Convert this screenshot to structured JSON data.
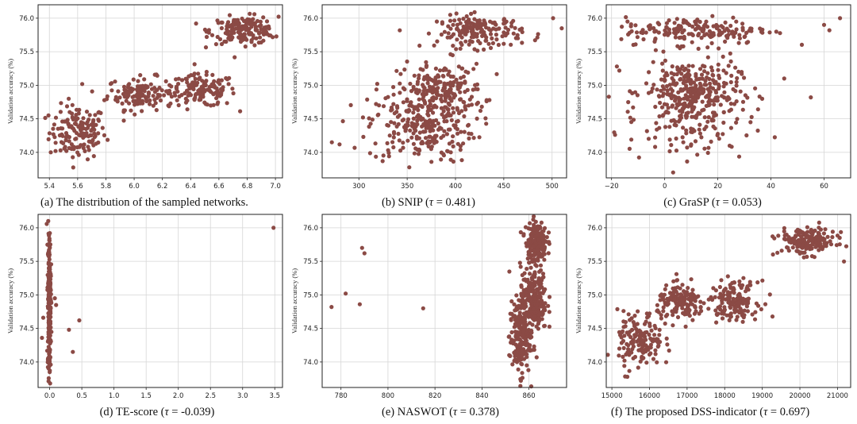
{
  "chart_data": [
    {
      "type": "scatter",
      "caption": "(a) The distribution of the sampled networks.",
      "ylabel": "Validation accuracy (%)",
      "xlabel": "",
      "xlim": [
        5.32,
        7.05
      ],
      "ylim": [
        73.62,
        76.2
      ],
      "xticks": [
        5.4,
        5.6,
        5.8,
        6.0,
        6.2,
        6.4,
        6.6,
        6.8,
        7.0
      ],
      "xtick_labels": [
        "5.4",
        "5.6",
        "5.8",
        "6.0",
        "6.2",
        "6.4",
        "6.6",
        "6.8",
        "7.0"
      ],
      "yticks": [
        74.0,
        74.5,
        75.0,
        75.5,
        76.0
      ],
      "ytick_labels": [
        "74.0",
        "74.5",
        "75.0",
        "75.5",
        "76.0"
      ],
      "grid": true,
      "marker_color": "#8b4a45",
      "clusters": [
        {
          "cx": 5.6,
          "cy": 74.3,
          "sx": 0.1,
          "sy": 0.2,
          "n": 150
        },
        {
          "cx": 6.05,
          "cy": 74.88,
          "sx": 0.12,
          "sy": 0.12,
          "n": 140
        },
        {
          "cx": 6.48,
          "cy": 74.92,
          "sx": 0.12,
          "sy": 0.12,
          "n": 140
        },
        {
          "cx": 6.78,
          "cy": 75.82,
          "sx": 0.12,
          "sy": 0.1,
          "n": 170
        }
      ]
    },
    {
      "type": "scatter",
      "caption": "(b) SNIP (τ = 0.481)",
      "caption_parts": {
        "name": "(b) SNIP (",
        "tau": "τ",
        "rest": " = 0.481)"
      },
      "ylabel": "Validation accuracy (%)",
      "xlim": [
        262,
        515
      ],
      "ylim": [
        73.62,
        76.2
      ],
      "xticks": [
        300,
        350,
        400,
        450,
        500
      ],
      "xtick_labels": [
        "300",
        "350",
        "400",
        "450",
        "500"
      ],
      "yticks": [
        74.0,
        74.5,
        75.0,
        75.5,
        76.0
      ],
      "ytick_labels": [
        "74.0",
        "74.5",
        "75.0",
        "75.5",
        "76.0"
      ],
      "grid": true,
      "marker_color": "#8b4a45",
      "clusters": [
        {
          "cx": 365,
          "cy": 74.4,
          "sx": 28,
          "sy": 0.28,
          "n": 260
        },
        {
          "cx": 385,
          "cy": 74.95,
          "sx": 22,
          "sy": 0.18,
          "n": 180
        },
        {
          "cx": 425,
          "cy": 75.8,
          "sx": 22,
          "sy": 0.12,
          "n": 170
        }
      ],
      "outliers": [
        [
          272,
          74.15
        ],
        [
          280,
          74.12
        ],
        [
          501,
          76.0
        ],
        [
          510,
          75.85
        ]
      ]
    },
    {
      "type": "scatter",
      "caption": "(c) GraSP (τ = 0.053)",
      "caption_parts": {
        "name": "(c) GraSP (",
        "tau": "τ",
        "rest": " = 0.053)"
      },
      "ylabel": "Validation accuracy (%)",
      "xlim": [
        -22,
        70
      ],
      "ylim": [
        73.62,
        76.2
      ],
      "xticks": [
        -20,
        0,
        20,
        40,
        60
      ],
      "xtick_labels": [
        "−20",
        "0",
        "20",
        "40",
        "60"
      ],
      "yticks": [
        74.0,
        74.5,
        75.0,
        75.5,
        76.0
      ],
      "ytick_labels": [
        "74.0",
        "74.5",
        "75.0",
        "75.5",
        "76.0"
      ],
      "grid": true,
      "marker_color": "#8b4a45",
      "clusters": [
        {
          "cx": 10,
          "cy": 74.9,
          "sx": 9,
          "sy": 0.25,
          "n": 320
        },
        {
          "cx": 10,
          "cy": 74.35,
          "sx": 12,
          "sy": 0.3,
          "n": 90
        },
        {
          "cx": 12,
          "cy": 75.82,
          "sx": 14,
          "sy": 0.1,
          "n": 170
        }
      ],
      "outliers": [
        [
          -18,
          75.28
        ],
        [
          -14,
          75.95
        ],
        [
          45,
          75.1
        ],
        [
          55,
          74.82
        ],
        [
          60,
          75.9
        ],
        [
          66,
          76.0
        ],
        [
          62,
          75.82
        ]
      ]
    },
    {
      "type": "scatter",
      "caption": "(d) TE-score (τ = -0.039)",
      "caption_parts": {
        "name": "(d) TE-score (",
        "tau": "τ",
        "rest": " = -0.039)"
      },
      "ylabel": "Validation accuracy (%)",
      "xlim": [
        -0.18,
        3.62
      ],
      "ylim": [
        73.62,
        76.2
      ],
      "xticks": [
        0.0,
        0.5,
        1.0,
        1.5,
        2.0,
        2.5,
        3.0,
        3.5
      ],
      "xtick_labels": [
        "0.0",
        "0.5",
        "1.0",
        "1.5",
        "2.0",
        "2.5",
        "3.0",
        "3.5"
      ],
      "yticks": [
        74.0,
        74.5,
        75.0,
        75.5,
        76.0
      ],
      "ytick_labels": [
        "74.0",
        "74.5",
        "75.0",
        "75.5",
        "76.0"
      ],
      "grid": true,
      "marker_color": "#8b4a45",
      "clusters": [
        {
          "cx": -0.005,
          "cy": 74.9,
          "sx": 0.012,
          "sy": 0.55,
          "n": 260
        }
      ],
      "outliers": [
        [
          -0.1,
          74.66
        ],
        [
          -0.12,
          74.36
        ],
        [
          0.08,
          74.95
        ],
        [
          0.1,
          74.85
        ],
        [
          0.3,
          74.48
        ],
        [
          0.36,
          74.15
        ],
        [
          0.46,
          74.62
        ],
        [
          3.48,
          76.0
        ]
      ]
    },
    {
      "type": "scatter",
      "caption": "(e) NASWOT (τ = 0.378)",
      "caption_parts": {
        "name": "(e) NASWOT (",
        "tau": "τ",
        "rest": " = 0.378)"
      },
      "ylabel": "Validation accuracy (%)",
      "xlim": [
        772,
        876
      ],
      "ylim": [
        73.62,
        76.2
      ],
      "xticks": [
        780,
        800,
        820,
        840,
        860
      ],
      "xtick_labels": [
        "780",
        "800",
        "820",
        "840",
        "860"
      ],
      "yticks": [
        74.0,
        74.5,
        75.0,
        75.5,
        76.0
      ],
      "ytick_labels": [
        "74.0",
        "74.5",
        "75.0",
        "75.5",
        "76.0"
      ],
      "grid": true,
      "marker_color": "#8b4a45",
      "clusters": [
        {
          "cx": 856,
          "cy": 74.35,
          "sx": 2.2,
          "sy": 0.28,
          "n": 180
        },
        {
          "cx": 862,
          "cy": 74.95,
          "sx": 2.8,
          "sy": 0.25,
          "n": 230
        },
        {
          "cx": 863,
          "cy": 75.8,
          "sx": 2.2,
          "sy": 0.15,
          "n": 170
        }
      ],
      "outliers": [
        [
          776,
          74.82
        ],
        [
          782,
          75.02
        ],
        [
          788,
          74.86
        ],
        [
          789,
          75.7
        ],
        [
          790,
          75.62
        ],
        [
          815,
          74.8
        ]
      ]
    },
    {
      "type": "scatter",
      "caption": "(f) The proposed DSS-indicator (τ = 0.697)",
      "caption_parts": {
        "name": "(f) The proposed DSS-indicator (",
        "tau": "τ",
        "rest": " = 0.697)"
      },
      "ylabel": "Validation accuracy (%)",
      "xlim": [
        14850,
        21350
      ],
      "ylim": [
        73.62,
        76.2
      ],
      "xticks": [
        15000,
        16000,
        17000,
        18000,
        19000,
        20000,
        21000
      ],
      "xtick_labels": [
        "15000",
        "16000",
        "17000",
        "18000",
        "19000",
        "20000",
        "21000"
      ],
      "yticks": [
        74.0,
        74.5,
        75.0,
        75.5,
        76.0
      ],
      "ytick_labels": [
        "74.0",
        "74.5",
        "75.0",
        "75.5",
        "76.0"
      ],
      "grid": true,
      "marker_color": "#8b4a45",
      "clusters": [
        {
          "cx": 15750,
          "cy": 74.3,
          "sx": 300,
          "sy": 0.22,
          "n": 150
        },
        {
          "cx": 16850,
          "cy": 74.88,
          "sx": 320,
          "sy": 0.13,
          "n": 150
        },
        {
          "cx": 18250,
          "cy": 74.92,
          "sx": 320,
          "sy": 0.14,
          "n": 150
        },
        {
          "cx": 20200,
          "cy": 75.8,
          "sx": 380,
          "sy": 0.1,
          "n": 180
        }
      ]
    }
  ],
  "captions": {
    "a": "(a) The distribution of the sampled networks.",
    "b_name": "(b) SNIP (",
    "b_rest": " = 0.481)",
    "c_name": "(c) GraSP (",
    "c_rest": " = 0.053)",
    "d_name": "(d) TE-score (",
    "d_rest": " = -0.039)",
    "e_name": "(e) NASWOT (",
    "e_rest": " = 0.378)",
    "f_name": "(f) The proposed DSS-indicator (",
    "f_rest": " = 0.697)",
    "tau": "τ"
  }
}
